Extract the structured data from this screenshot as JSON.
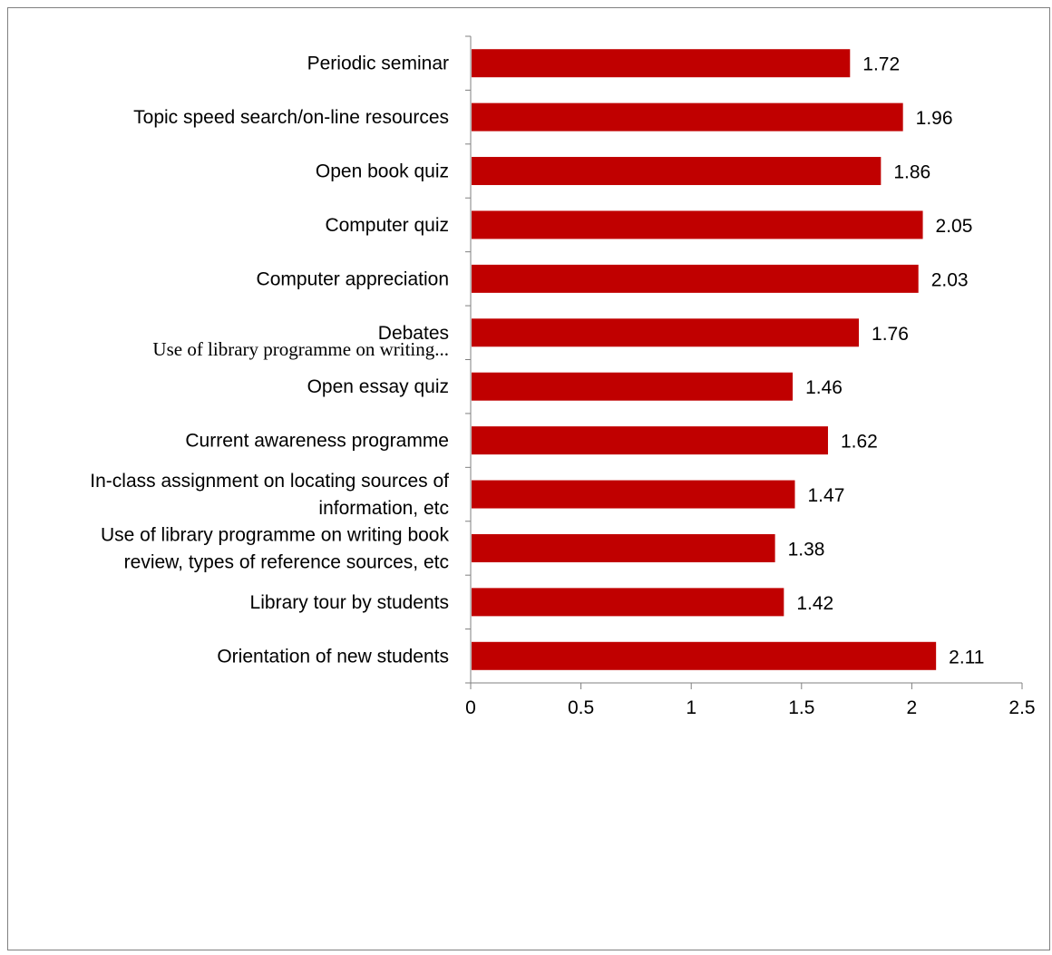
{
  "chart_data": {
    "type": "bar",
    "orientation": "horizontal",
    "categories": [
      [
        "Periodic seminar"
      ],
      [
        "Topic speed search/on-line resources"
      ],
      [
        "Open book quiz"
      ],
      [
        "Computer quiz"
      ],
      [
        "Computer appreciation"
      ],
      [
        "Debates"
      ],
      [
        "Open essay quiz"
      ],
      [
        "Current awareness programme"
      ],
      [
        "In-class assignment on locating sources of",
        "information, etc"
      ],
      [
        "Use of library programme on writing book",
        "review, types of reference sources, etc"
      ],
      [
        "Library tour by students"
      ],
      [
        "Orientation of new students"
      ]
    ],
    "values": [
      1.72,
      1.96,
      1.86,
      2.05,
      2.03,
      1.76,
      1.46,
      1.62,
      1.47,
      1.38,
      1.42,
      2.11
    ],
    "data_labels": [
      "1.72",
      "1.96",
      "1.86",
      "2.05",
      "2.03",
      "1.76",
      "1.46",
      "1.62",
      "1.47",
      "1.38",
      "1.42",
      "2.11"
    ],
    "overflow_label": "Use of library programme on writing...",
    "xlim": [
      0,
      2.5
    ],
    "x_ticks": [
      "0",
      "0.5",
      "1",
      "1.5",
      "2",
      "2.5"
    ],
    "title": "",
    "xlabel": "",
    "ylabel": "",
    "grid": false,
    "legend": "none",
    "bar_color": "#c00000",
    "axis_color": "#808080"
  }
}
